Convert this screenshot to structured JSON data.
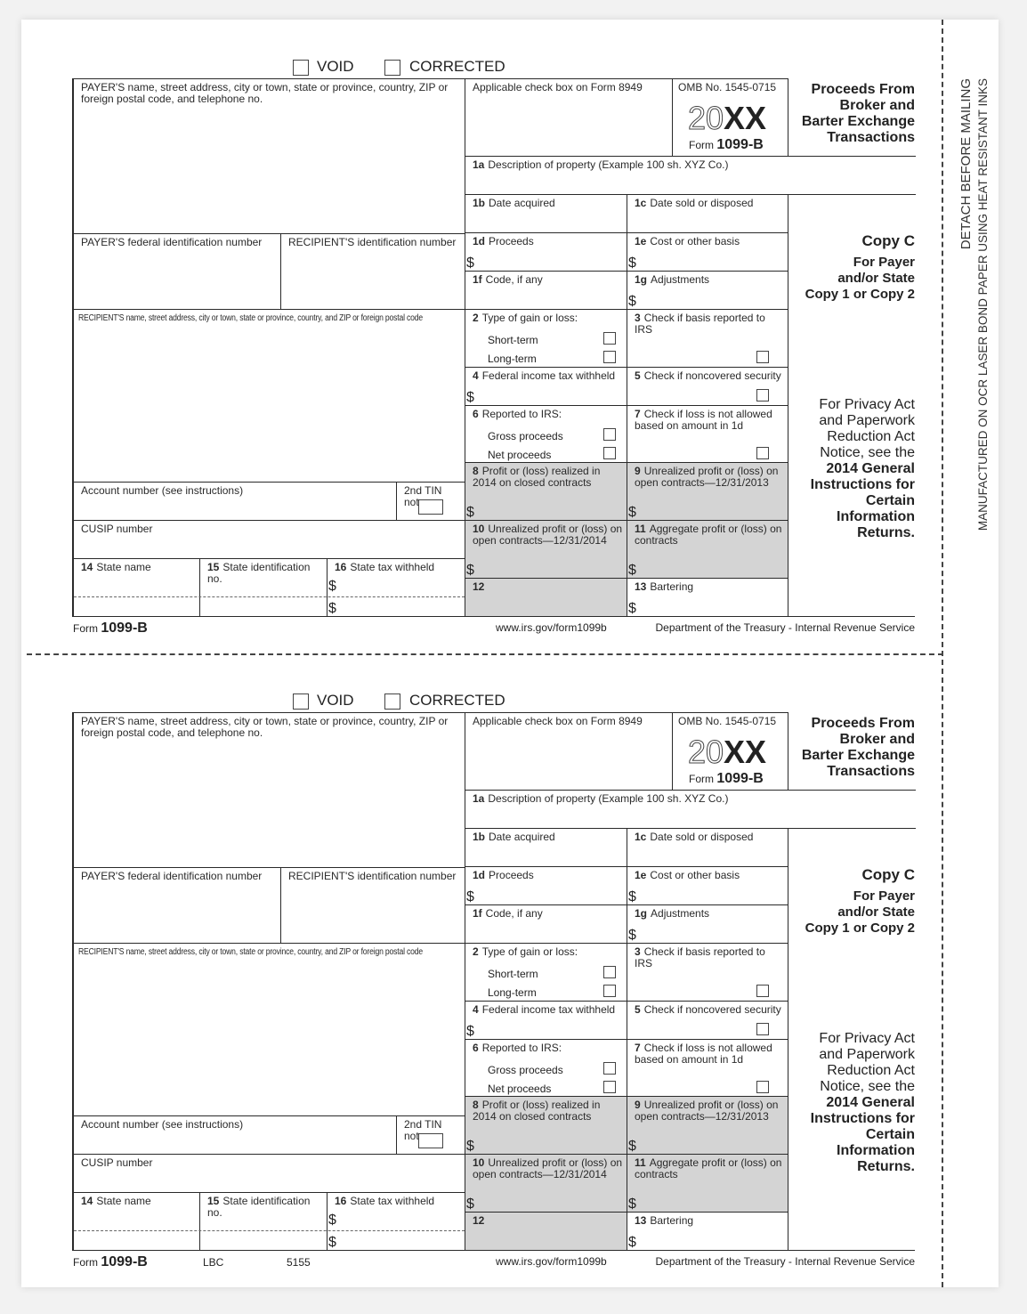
{
  "header": {
    "void": "VOID",
    "corrected": "CORRECTED"
  },
  "form": {
    "payer_name": "PAYER'S name, street address, city or town, state or province, country, ZIP or foreign postal code, and telephone no.",
    "payer_tin": "PAYER'S federal identification number",
    "recipient_tin": "RECIPIENT'S identification number",
    "recipient_name": "RECIPIENT'S name, street address, city or town, state or province, country, and ZIP or foreign postal code",
    "account": "Account number (see instructions)",
    "second_tin": "2nd TIN not.",
    "cusip": "CUSIP number",
    "b14": {
      "num": "14",
      "text": "State name"
    },
    "b15": {
      "num": "15",
      "text": "State identification no."
    },
    "b16": {
      "num": "16",
      "text": "State tax withheld"
    },
    "applicable": "Applicable check box on Form 8949",
    "omb": "OMB No. 1545-0715",
    "year_prefix": "20",
    "year_suffix": "XX",
    "form_label": "Form",
    "form_number": "1099-B",
    "b1a": {
      "num": "1a",
      "text": "Description of property (Example 100 sh. XYZ Co.)"
    },
    "b1b": {
      "num": "1b",
      "text": "Date acquired"
    },
    "b1c": {
      "num": "1c",
      "text": "Date sold or disposed"
    },
    "b1d": {
      "num": "1d",
      "text": "Proceeds"
    },
    "b1e": {
      "num": "1e",
      "text": "Cost or other basis"
    },
    "b1f": {
      "num": "1f",
      "text": "Code, if any"
    },
    "b1g": {
      "num": "1g",
      "text": "Adjustments"
    },
    "b2": {
      "num": "2",
      "text": "Type of gain or loss:"
    },
    "b2_options": [
      "Short-term",
      "Long-term"
    ],
    "b3": {
      "num": "3",
      "text": "Check if basis reported to IRS"
    },
    "b4": {
      "num": "4",
      "text": "Federal income tax withheld"
    },
    "b5": {
      "num": "5",
      "text": "Check if noncovered security"
    },
    "b6": {
      "num": "6",
      "text": "Reported to IRS:"
    },
    "b6_options": [
      "Gross proceeds",
      "Net proceeds"
    ],
    "b7": {
      "num": "7",
      "text": "Check if loss is not allowed based on amount in 1d"
    },
    "b8": {
      "num": "8",
      "text": "Profit or (loss) realized in 2014 on closed contracts"
    },
    "b9": {
      "num": "9",
      "text": "Unrealized profit or (loss) on open contracts—12/31/2013"
    },
    "b10": {
      "num": "10",
      "text": "Unrealized profit or (loss) on open contracts—12/31/2014"
    },
    "b11": {
      "num": "11",
      "text": "Aggregate profit or (loss) on contracts"
    },
    "b12": {
      "num": "12",
      "text": ""
    },
    "b13": {
      "num": "13",
      "text": "Bartering"
    },
    "currency": "$",
    "shade_color": "#d4d4d4"
  },
  "side": {
    "title_lines": [
      "Proceeds From",
      "Broker and",
      "Barter Exchange",
      "Transactions"
    ],
    "copy": "Copy C",
    "copy_lines": [
      "For Payer",
      "and/or State",
      "Copy 1 or Copy 2"
    ],
    "privacy_lines": [
      "For Privacy Act",
      "and Paperwork",
      "Reduction Act",
      "Notice, see the"
    ],
    "privacy_bold_lines": [
      "2014 General",
      "Instructions for",
      "Certain",
      "Information",
      "Returns."
    ]
  },
  "footer": {
    "form_label": "Form",
    "form_number": "1099-B",
    "url": "www.irs.gov/form1099b",
    "dept": "Department of the Treasury - Internal Revenue Service",
    "extra": [
      "LBC",
      "5155"
    ]
  },
  "margin": {
    "detach": "DETACH BEFORE MAILING",
    "manufactured": "MANUFACTURED ON OCR LASER BOND PAPER USING HEAT RESISTANT INKS"
  }
}
